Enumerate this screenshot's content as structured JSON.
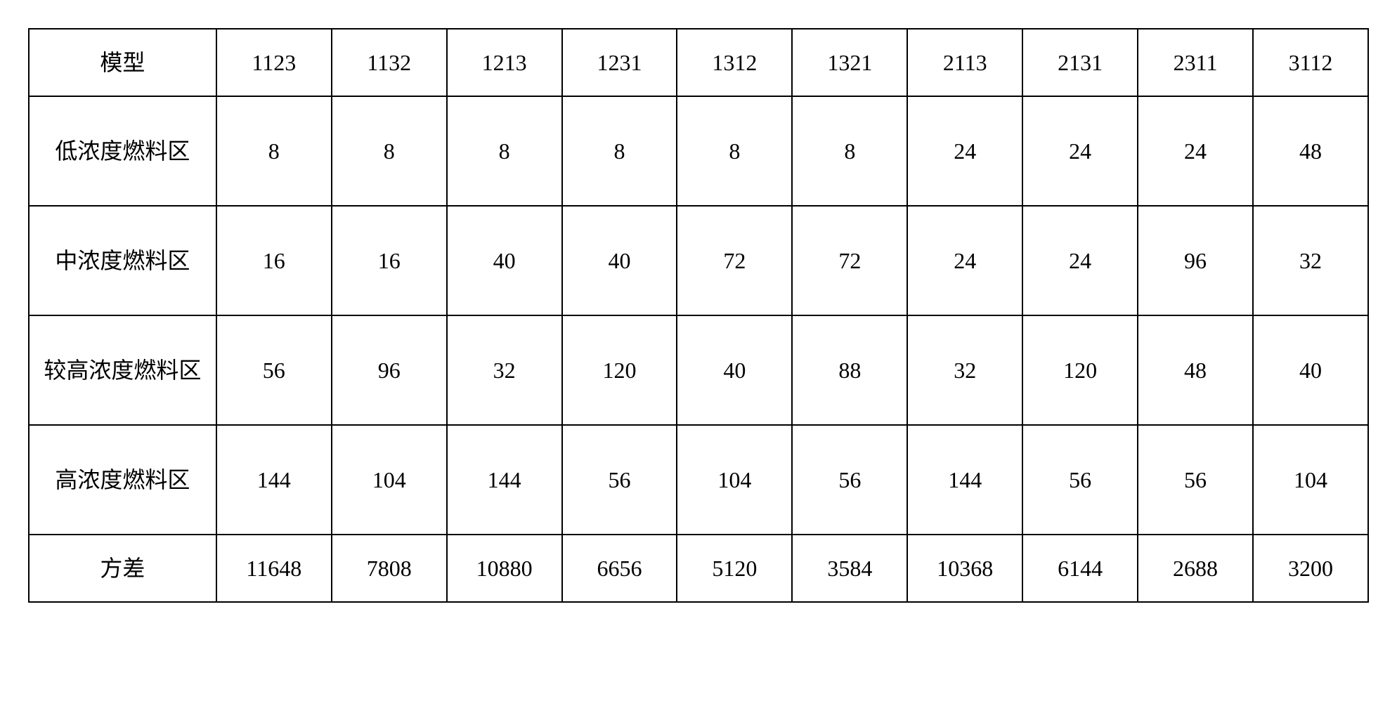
{
  "table": {
    "type": "table",
    "border_color": "#000000",
    "background_color": "#ffffff",
    "font_family": "SimSun",
    "cell_fontsize_pt": 24,
    "header_row_label": "模型",
    "columns": [
      "1123",
      "1132",
      "1213",
      "1231",
      "1312",
      "1321",
      "2113",
      "2131",
      "2311",
      "3112"
    ],
    "rows": [
      {
        "label": "低浓度燃料区",
        "values": [
          "8",
          "8",
          "8",
          "8",
          "8",
          "8",
          "24",
          "24",
          "24",
          "48"
        ]
      },
      {
        "label": "中浓度燃料区",
        "values": [
          "16",
          "16",
          "40",
          "40",
          "72",
          "72",
          "24",
          "24",
          "96",
          "32"
        ]
      },
      {
        "label": "较高浓度燃料区",
        "values": [
          "56",
          "96",
          "32",
          "120",
          "40",
          "88",
          "32",
          "120",
          "48",
          "40"
        ]
      },
      {
        "label": "高浓度燃料区",
        "values": [
          "144",
          "104",
          "144",
          "56",
          "104",
          "56",
          "144",
          "56",
          "56",
          "104"
        ]
      },
      {
        "label": "方差",
        "values": [
          "11648",
          "7808",
          "10880",
          "6656",
          "5120",
          "3584",
          "10368",
          "6144",
          "2688",
          "3200"
        ]
      }
    ]
  }
}
